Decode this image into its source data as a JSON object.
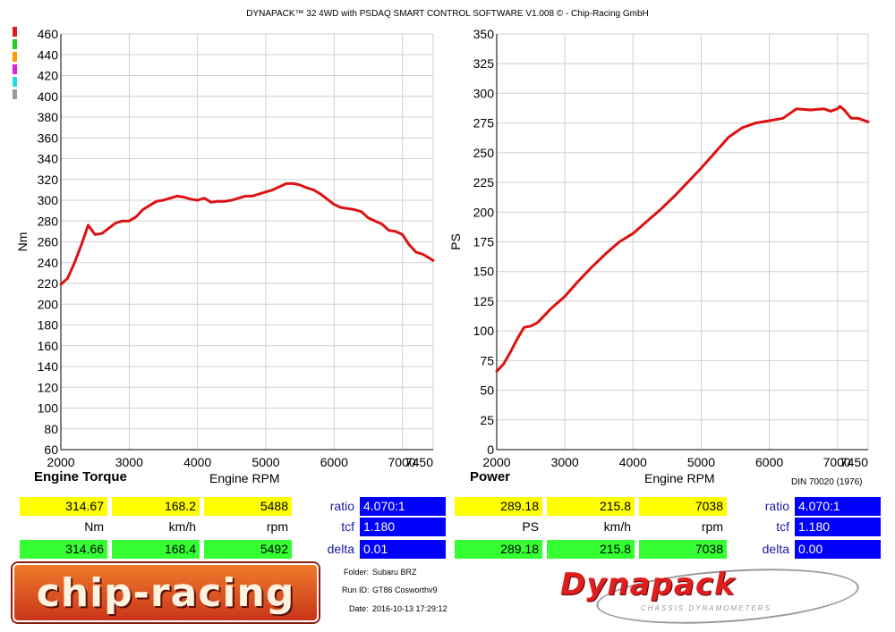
{
  "header": "DYNAPACK™ 32 4WD with PSDAQ SMART CONTROL SOFTWARE V1.008 © - Chip-Racing GmbH",
  "legend_colors": [
    "#e02020",
    "#22cc22",
    "#ff9900",
    "#dd22dd",
    "#22dddd",
    "#999999"
  ],
  "left": {
    "title": "Engine Torque",
    "x_title": "Engine RPM",
    "readings": {
      "row1": [
        "314.67",
        "168.2",
        "5488"
      ],
      "units": [
        "Nm",
        "km/h",
        "rpm"
      ],
      "row2": [
        "314.66",
        "168.4",
        "5492"
      ]
    },
    "params": {
      "ratio_label": "ratio",
      "ratio_value": "4.070:1",
      "tcf_label": "tcf",
      "tcf_value": "1.180",
      "delta_label": "delta",
      "delta_value": "0.01"
    }
  },
  "right": {
    "title": "Power",
    "x_title": "Engine RPM",
    "standard": "DIN 70020 (1976)",
    "readings": {
      "row1": [
        "289.18",
        "215.8",
        "7038"
      ],
      "units": [
        "PS",
        "km/h",
        "rpm"
      ],
      "row2": [
        "289.18",
        "215.8",
        "7038"
      ]
    },
    "params": {
      "ratio_label": "ratio",
      "ratio_value": "4.070:1",
      "tcf_label": "tcf",
      "tcf_value": "1.180",
      "delta_label": "delta",
      "delta_value": "0.00"
    }
  },
  "footer": {
    "logo_left": "chip-racing",
    "logo_right": "Dynapack",
    "logo_right_sub": "CHASSIS DYNAMOMETERS",
    "folder_label": "Folder:",
    "folder_value": "Subaru BRZ",
    "run_label": "Run ID:",
    "run_value": "GT86 Cosworthv9",
    "date_label": "Date:",
    "date_value": "2016-10-13 17:29:12"
  },
  "chart_data": [
    {
      "type": "line",
      "ylabel": "Nm",
      "xlim": [
        2000,
        7450
      ],
      "ylim": [
        60,
        460
      ],
      "x_ticks": [
        "2000",
        "3000",
        "4000",
        "5000",
        "6000",
        "7000",
        "7450"
      ],
      "y_ticks": [
        "60",
        "80",
        "100",
        "120",
        "140",
        "160",
        "180",
        "200",
        "220",
        "240",
        "260",
        "280",
        "300",
        "320",
        "340",
        "360",
        "380",
        "400",
        "420",
        "440",
        "460"
      ],
      "grid": true,
      "series": [
        {
          "color": "#dd1111",
          "x": [
            2000,
            2100,
            2200,
            2300,
            2400,
            2500,
            2600,
            2700,
            2800,
            2900,
            3000,
            3100,
            3200,
            3300,
            3400,
            3500,
            3600,
            3700,
            3800,
            3900,
            4000,
            4100,
            4200,
            4300,
            4400,
            4500,
            4600,
            4700,
            4800,
            4900,
            5000,
            5100,
            5200,
            5300,
            5400,
            5488,
            5600,
            5700,
            5800,
            5900,
            6000,
            6100,
            6200,
            6300,
            6400,
            6500,
            6600,
            6700,
            6800,
            6900,
            7000,
            7100,
            7200,
            7300,
            7450
          ],
          "y": [
            219,
            225,
            240,
            257,
            276,
            267,
            268,
            273,
            278,
            280,
            280,
            284,
            291,
            295,
            299,
            300,
            302,
            304,
            303,
            301,
            300,
            302,
            298,
            299,
            299,
            300,
            302,
            304,
            304,
            306,
            308,
            310,
            313,
            316,
            316,
            315,
            312,
            310,
            306,
            301,
            296,
            293,
            292,
            291,
            289,
            283,
            280,
            277,
            271,
            270,
            267,
            257,
            250,
            248,
            242
          ]
        }
      ]
    },
    {
      "type": "line",
      "ylabel": "PS",
      "xlim": [
        2000,
        7450
      ],
      "ylim": [
        0,
        350
      ],
      "x_ticks": [
        "2000",
        "3000",
        "4000",
        "5000",
        "6000",
        "7000",
        "7450"
      ],
      "y_ticks": [
        "0",
        "25",
        "50",
        "75",
        "100",
        "125",
        "150",
        "175",
        "200",
        "225",
        "250",
        "275",
        "300",
        "325",
        "350"
      ],
      "grid": true,
      "series": [
        {
          "color": "#dd1111",
          "x": [
            2000,
            2100,
            2200,
            2300,
            2400,
            2500,
            2600,
            2700,
            2800,
            2900,
            3000,
            3200,
            3400,
            3600,
            3800,
            4000,
            4200,
            4400,
            4600,
            4800,
            5000,
            5200,
            5400,
            5600,
            5800,
            6000,
            6200,
            6400,
            6600,
            6800,
            6900,
            7000,
            7038,
            7100,
            7200,
            7300,
            7450
          ],
          "y": [
            66,
            72,
            82,
            93,
            103,
            104,
            107,
            113,
            119,
            124,
            129,
            142,
            154,
            165,
            175,
            182,
            192,
            202,
            213,
            225,
            237,
            250,
            263,
            271,
            275,
            277,
            279,
            287,
            286,
            287,
            285,
            287,
            289,
            286,
            279,
            279,
            276
          ]
        }
      ]
    }
  ]
}
